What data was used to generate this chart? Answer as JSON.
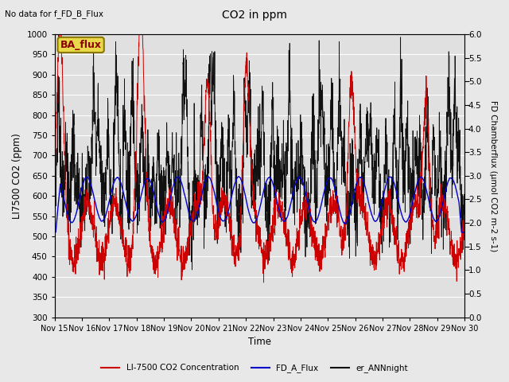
{
  "title": "CO2 in ppm",
  "top_left_text": "No data for f_FD_B_Flux",
  "legend_box_text": "BA_flux",
  "xlabel": "Time",
  "ylabel_left": "LI7500 CO2 (ppm)",
  "ylabel_right": "FD Chamberflux (μmol CO2 m-2 s-1)",
  "ylim_left": [
    300,
    1000
  ],
  "ylim_right": [
    0.0,
    6.0
  ],
  "yticks_left": [
    300,
    350,
    400,
    450,
    500,
    550,
    600,
    650,
    700,
    750,
    800,
    850,
    900,
    950,
    1000
  ],
  "yticks_right": [
    0.0,
    0.5,
    1.0,
    1.5,
    2.0,
    2.5,
    3.0,
    3.5,
    4.0,
    4.5,
    5.0,
    5.5,
    6.0
  ],
  "xtick_labels": [
    "Nov 15",
    "Nov 16",
    "Nov 17",
    "Nov 18",
    "Nov 19",
    "Nov 20",
    "Nov 21",
    "Nov 22",
    "Nov 23",
    "Nov 24",
    "Nov 25",
    "Nov 26",
    "Nov 27",
    "Nov 28",
    "Nov 29",
    "Nov 30"
  ],
  "color_red": "#cc0000",
  "color_blue": "#0000cc",
  "color_black": "#111111",
  "background_color": "#e8e8e8",
  "plot_bg_color": "#e0e0e0",
  "legend_items": [
    "LI-7500 CO2 Concentration",
    "FD_A_Flux",
    "er_ANNnight"
  ],
  "legend_colors": [
    "#cc0000",
    "#0000cc",
    "#111111"
  ],
  "seed": 42,
  "n_points": 2160,
  "days": 15
}
